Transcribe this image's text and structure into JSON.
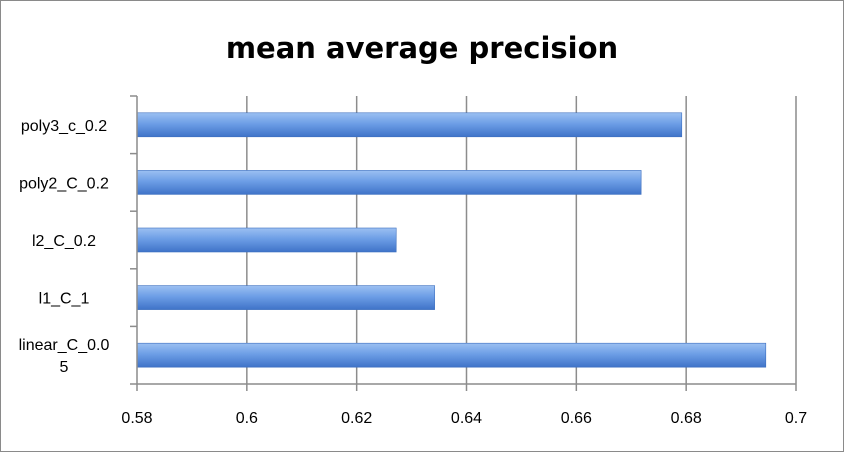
{
  "chart_data": {
    "type": "bar",
    "orientation": "horizontal",
    "title": "mean average precision",
    "categories": [
      "linear_C_0.05",
      "l1_C_1",
      "l2_C_0.2",
      "poly2_C_0.2",
      "poly3_c_0.2"
    ],
    "category_label_lines": [
      [
        "linear_C_0.0",
        "5"
      ],
      [
        "l1_C_1"
      ],
      [
        "l2_C_0.2"
      ],
      [
        "poly2_C_0.2"
      ],
      [
        "poly3_c_0.2"
      ]
    ],
    "values": [
      0.6945,
      0.6342,
      0.6272,
      0.6718,
      0.6792
    ],
    "xlim": [
      0.58,
      0.7
    ],
    "x_ticks": [
      "0.58",
      "0.6",
      "0.62",
      "0.64",
      "0.66",
      "0.68",
      "0.7"
    ],
    "xlabel": "",
    "ylabel": "",
    "grid": true,
    "legend": "none",
    "bar_color": "#5b8fd9"
  }
}
